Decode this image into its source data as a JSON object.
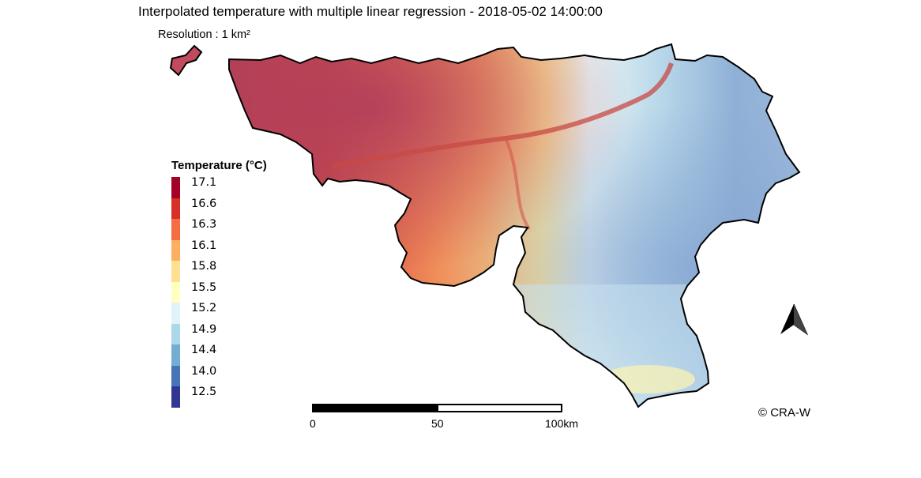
{
  "title": "Interpolated temperature with multiple linear regression - 2018-05-02 14:00:00",
  "subtitle": "Resolution : 1 km²",
  "legend": {
    "title": "Temperature (°C)",
    "items": [
      {
        "label": "17.1",
        "color": "#a50026"
      },
      {
        "label": "16.6",
        "color": "#d73027"
      },
      {
        "label": "16.3",
        "color": "#f46d43"
      },
      {
        "label": "16.1",
        "color": "#fdae61"
      },
      {
        "label": "15.8",
        "color": "#fee090"
      },
      {
        "label": "15.5",
        "color": "#ffffbf"
      },
      {
        "label": "15.2",
        "color": "#e0f3f8"
      },
      {
        "label": "14.9",
        "color": "#abd9e9"
      },
      {
        "label": "14.4",
        "color": "#74add1"
      },
      {
        "label": "14.0",
        "color": "#4575b4"
      },
      {
        "label": "12.5",
        "color": "#313695"
      }
    ]
  },
  "scale_bar": {
    "labels": [
      "0",
      "50",
      "100km"
    ]
  },
  "north_arrow": {
    "icon": "north-arrow-icon"
  },
  "copyright": "© CRA-W"
}
